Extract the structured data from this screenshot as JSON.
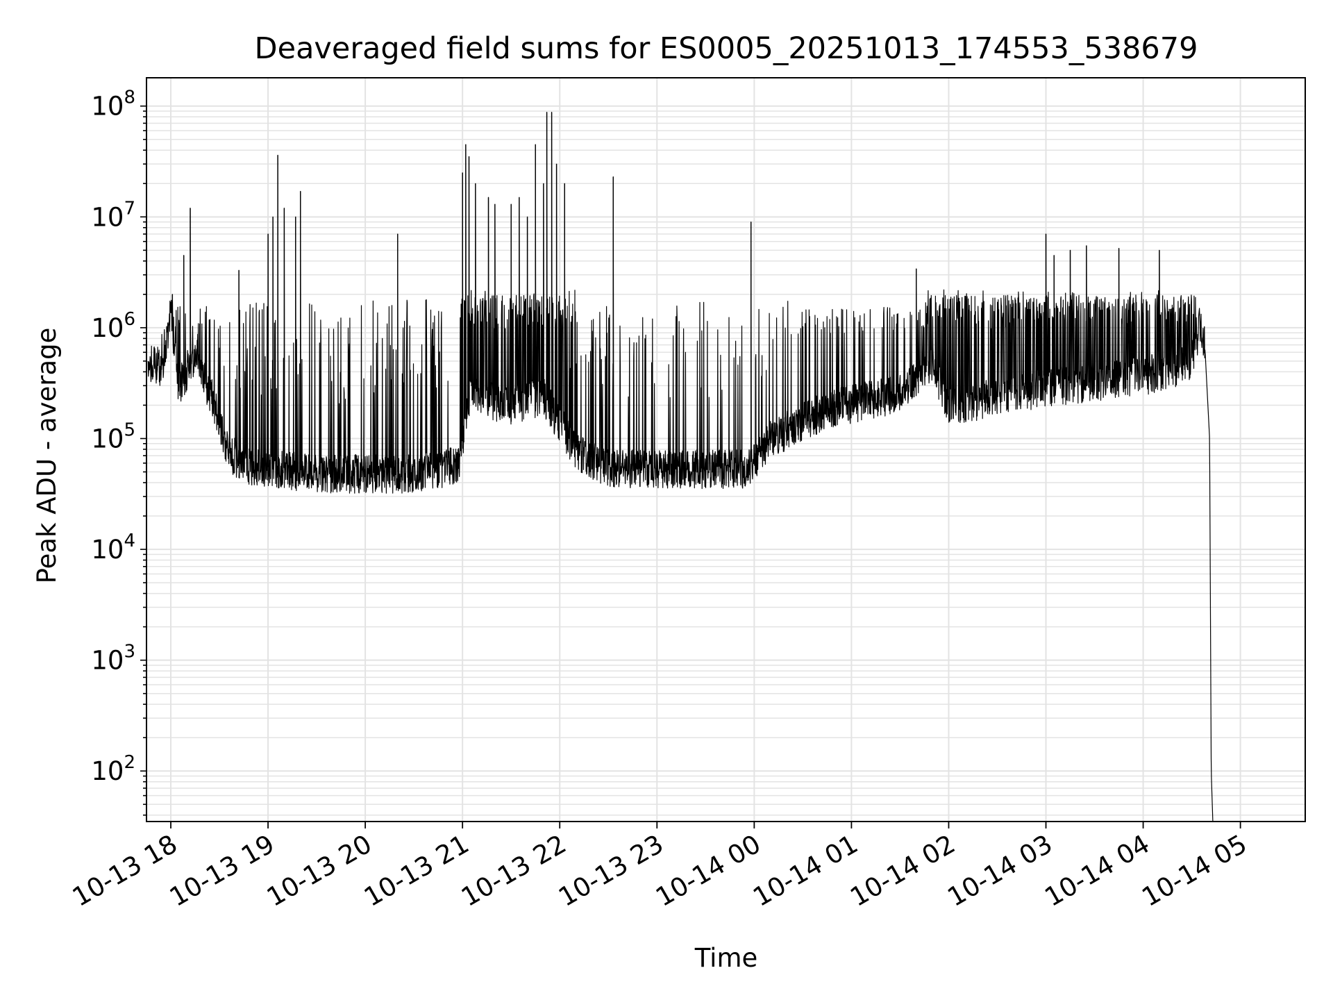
{
  "chart_data": {
    "type": "line",
    "title": "Deaveraged field sums for ES0005_20251013_174553_538679",
    "xlabel": "Time",
    "ylabel": "Peak ADU - average",
    "x_scale": "time",
    "y_scale": "log",
    "xlim": [
      "2025-10-13 17:45",
      "2025-10-14 05:40"
    ],
    "ylim": [
      35,
      180000000
    ],
    "grid": true,
    "legend": "none",
    "line_color": "#000000",
    "x_ticks": [
      {
        "value": "2025-10-13 18:00",
        "label": "10-13 18"
      },
      {
        "value": "2025-10-13 19:00",
        "label": "10-13 19"
      },
      {
        "value": "2025-10-13 20:00",
        "label": "10-13 20"
      },
      {
        "value": "2025-10-13 21:00",
        "label": "10-13 21"
      },
      {
        "value": "2025-10-13 22:00",
        "label": "10-13 22"
      },
      {
        "value": "2025-10-13 23:00",
        "label": "10-13 23"
      },
      {
        "value": "2025-10-14 00:00",
        "label": "10-14 00"
      },
      {
        "value": "2025-10-14 01:00",
        "label": "10-14 01"
      },
      {
        "value": "2025-10-14 02:00",
        "label": "10-14 02"
      },
      {
        "value": "2025-10-14 03:00",
        "label": "10-14 03"
      },
      {
        "value": "2025-10-14 04:00",
        "label": "10-14 04"
      },
      {
        "value": "2025-10-14 05:00",
        "label": "10-14 05"
      }
    ],
    "y_ticks": [
      {
        "value": 100,
        "base": "10",
        "exp": "2"
      },
      {
        "value": 1000,
        "base": "10",
        "exp": "3"
      },
      {
        "value": 10000,
        "base": "10",
        "exp": "4"
      },
      {
        "value": 100000,
        "base": "10",
        "exp": "5"
      },
      {
        "value": 1000000,
        "base": "10",
        "exp": "6"
      },
      {
        "value": 10000000,
        "base": "10",
        "exp": "7"
      },
      {
        "value": 100000000,
        "base": "10",
        "exp": "8"
      }
    ],
    "baseline_profile": [
      {
        "x": "2025-10-13 17:46",
        "y": 500000
      },
      {
        "x": "2025-10-13 17:55",
        "y": 450000
      },
      {
        "x": "2025-10-13 18:00",
        "y": 1500000
      },
      {
        "x": "2025-10-13 18:05",
        "y": 300000
      },
      {
        "x": "2025-10-13 18:15",
        "y": 600000
      },
      {
        "x": "2025-10-13 18:25",
        "y": 250000
      },
      {
        "x": "2025-10-13 18:35",
        "y": 80000
      },
      {
        "x": "2025-10-13 18:45",
        "y": 60000
      },
      {
        "x": "2025-10-13 19:30",
        "y": 50000
      },
      {
        "x": "2025-10-13 20:30",
        "y": 50000
      },
      {
        "x": "2025-10-13 20:58",
        "y": 60000
      },
      {
        "x": "2025-10-13 21:05",
        "y": 300000
      },
      {
        "x": "2025-10-13 21:25",
        "y": 200000
      },
      {
        "x": "2025-10-13 21:50",
        "y": 250000
      },
      {
        "x": "2025-10-13 22:10",
        "y": 80000
      },
      {
        "x": "2025-10-13 22:30",
        "y": 55000
      },
      {
        "x": "2025-10-13 23:55",
        "y": 55000
      },
      {
        "x": "2025-10-14 00:10",
        "y": 100000
      },
      {
        "x": "2025-10-14 00:30",
        "y": 150000
      },
      {
        "x": "2025-10-14 00:50",
        "y": 200000
      },
      {
        "x": "2025-10-14 01:30",
        "y": 260000
      },
      {
        "x": "2025-10-14 01:50",
        "y": 500000
      },
      {
        "x": "2025-10-14 02:00",
        "y": 200000
      },
      {
        "x": "2025-10-14 03:00",
        "y": 300000
      },
      {
        "x": "2025-10-14 04:00",
        "y": 380000
      },
      {
        "x": "2025-10-14 04:30",
        "y": 500000
      },
      {
        "x": "2025-10-14 04:35",
        "y": 1100000
      },
      {
        "x": "2025-10-14 04:38",
        "y": 700000
      },
      {
        "x": "2025-10-14 04:41",
        "y": 100000
      },
      {
        "x": "2025-10-14 04:42",
        "y": 100
      },
      {
        "x": "2025-10-14 04:43",
        "y": 35
      }
    ],
    "peaks": [
      {
        "x": "2025-10-13 18:01",
        "y": 2000000
      },
      {
        "x": "2025-10-13 18:08",
        "y": 4500000
      },
      {
        "x": "2025-10-13 18:12",
        "y": 12000000
      },
      {
        "x": "2025-10-13 18:42",
        "y": 3300000
      },
      {
        "x": "2025-10-13 19:00",
        "y": 7000000
      },
      {
        "x": "2025-10-13 19:03",
        "y": 10000000
      },
      {
        "x": "2025-10-13 19:06",
        "y": 36000000
      },
      {
        "x": "2025-10-13 19:10",
        "y": 12000000
      },
      {
        "x": "2025-10-13 19:17",
        "y": 10000000
      },
      {
        "x": "2025-10-13 19:20",
        "y": 17000000
      },
      {
        "x": "2025-10-13 20:20",
        "y": 7000000
      },
      {
        "x": "2025-10-13 21:00",
        "y": 25000000
      },
      {
        "x": "2025-10-13 21:02",
        "y": 45000000
      },
      {
        "x": "2025-10-13 21:04",
        "y": 35000000
      },
      {
        "x": "2025-10-13 21:08",
        "y": 20000000
      },
      {
        "x": "2025-10-13 21:16",
        "y": 15000000
      },
      {
        "x": "2025-10-13 21:20",
        "y": 13000000
      },
      {
        "x": "2025-10-13 21:30",
        "y": 13000000
      },
      {
        "x": "2025-10-13 21:35",
        "y": 15000000
      },
      {
        "x": "2025-10-13 21:40",
        "y": 10000000
      },
      {
        "x": "2025-10-13 21:45",
        "y": 45000000
      },
      {
        "x": "2025-10-13 21:50",
        "y": 20000000
      },
      {
        "x": "2025-10-13 21:52",
        "y": 88000000
      },
      {
        "x": "2025-10-13 21:55",
        "y": 88000000
      },
      {
        "x": "2025-10-13 21:58",
        "y": 30000000
      },
      {
        "x": "2025-10-13 22:03",
        "y": 20000000
      },
      {
        "x": "2025-10-13 22:33",
        "y": 23000000
      },
      {
        "x": "2025-10-13 23:58",
        "y": 9000000
      },
      {
        "x": "2025-10-14 01:40",
        "y": 3400000
      },
      {
        "x": "2025-10-14 03:00",
        "y": 7000000
      },
      {
        "x": "2025-10-14 03:05",
        "y": 4500000
      },
      {
        "x": "2025-10-14 03:15",
        "y": 5000000
      },
      {
        "x": "2025-10-14 03:25",
        "y": 5500000
      },
      {
        "x": "2025-10-14 03:45",
        "y": 5200000
      },
      {
        "x": "2025-10-14 04:10",
        "y": 5000000
      }
    ]
  }
}
